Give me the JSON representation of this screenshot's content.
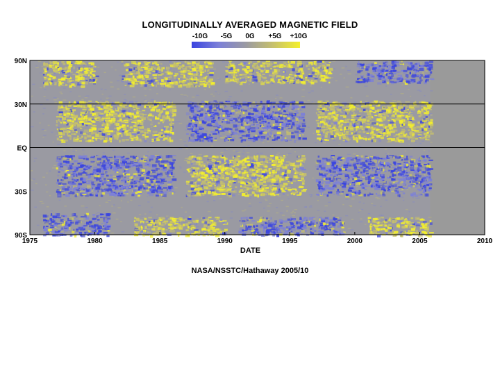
{
  "chart_data": {
    "type": "heatmap",
    "title": "LONGITUDINALLY AVERAGED MAGNETIC FIELD",
    "colorbar": {
      "ticks": [
        "-10G",
        "-5G",
        "0G",
        "+5G",
        "+10G"
      ],
      "values": [
        -10,
        -5,
        0,
        5,
        10
      ],
      "colors": [
        "#3a44e0",
        "#7c80d8",
        "#9a9aa2",
        "#c6c06c",
        "#f4f02c"
      ]
    },
    "xlabel": "DATE",
    "xlim": [
      1975,
      2010
    ],
    "x_ticks": [
      "1975",
      "1980",
      "1985",
      "1990",
      "1995",
      "2000",
      "2005",
      "2010"
    ],
    "x_tick_values": [
      1975,
      1980,
      1985,
      1990,
      1995,
      2000,
      2005,
      2010
    ],
    "y_ticks": [
      "90N",
      "30N",
      "EQ",
      "30S",
      "90S"
    ],
    "y_tick_values": [
      90,
      30,
      0,
      -30,
      -90
    ],
    "reference_lines_lat": [
      30,
      0
    ],
    "data_end_year": 2005.8,
    "no_data_color": "#9a9a9a",
    "background_color": "#9a9aa2",
    "features": [
      {
        "name": "polar-north-cycle21",
        "lat_range": [
          55,
          90
        ],
        "years": [
          1976,
          1980
        ],
        "sign": 1
      },
      {
        "name": "polar-north-cycle22",
        "lat_range": [
          55,
          90
        ],
        "years": [
          1982,
          1989
        ],
        "sign": 1
      },
      {
        "name": "polar-north-cycle22b",
        "lat_range": [
          60,
          90
        ],
        "years": [
          1990,
          1998
        ],
        "sign": 1
      },
      {
        "name": "polar-north-cycle23",
        "lat_range": [
          60,
          90
        ],
        "years": [
          2000,
          2005.8
        ],
        "sign": -1
      },
      {
        "name": "polar-south-cycle21",
        "lat_range": [
          -90,
          -60
        ],
        "years": [
          1976,
          1981
        ],
        "sign": -1
      },
      {
        "name": "polar-south-cycle22",
        "lat_range": [
          -90,
          -65
        ],
        "years": [
          1983,
          1990
        ],
        "sign": 1
      },
      {
        "name": "polar-south-cycle22b",
        "lat_range": [
          -90,
          -65
        ],
        "years": [
          1991,
          1999
        ],
        "sign": -1
      },
      {
        "name": "polar-south-cycle23",
        "lat_range": [
          -90,
          -65
        ],
        "years": [
          2001,
          2005.8
        ],
        "sign": 1
      },
      {
        "name": "north-active-cycle21",
        "lat_range": [
          5,
          35
        ],
        "years": [
          1977,
          1986
        ],
        "sign": 1
      },
      {
        "name": "south-active-cycle21",
        "lat_range": [
          -35,
          -5
        ],
        "years": [
          1977,
          1986
        ],
        "sign": -1
      },
      {
        "name": "north-active-cycle22",
        "lat_range": [
          5,
          35
        ],
        "years": [
          1987,
          1996
        ],
        "sign": -1
      },
      {
        "name": "south-active-cycle22",
        "lat_range": [
          -35,
          -5
        ],
        "years": [
          1987,
          1996
        ],
        "sign": 1
      },
      {
        "name": "north-active-cycle23",
        "lat_range": [
          5,
          35
        ],
        "years": [
          1997,
          2005.8
        ],
        "sign": 1
      },
      {
        "name": "south-active-cycle23",
        "lat_range": [
          -35,
          -5
        ],
        "years": [
          1997,
          2005.8
        ],
        "sign": -1
      }
    ],
    "credit": "NASA/NSSTC/Hathaway 2005/10"
  }
}
